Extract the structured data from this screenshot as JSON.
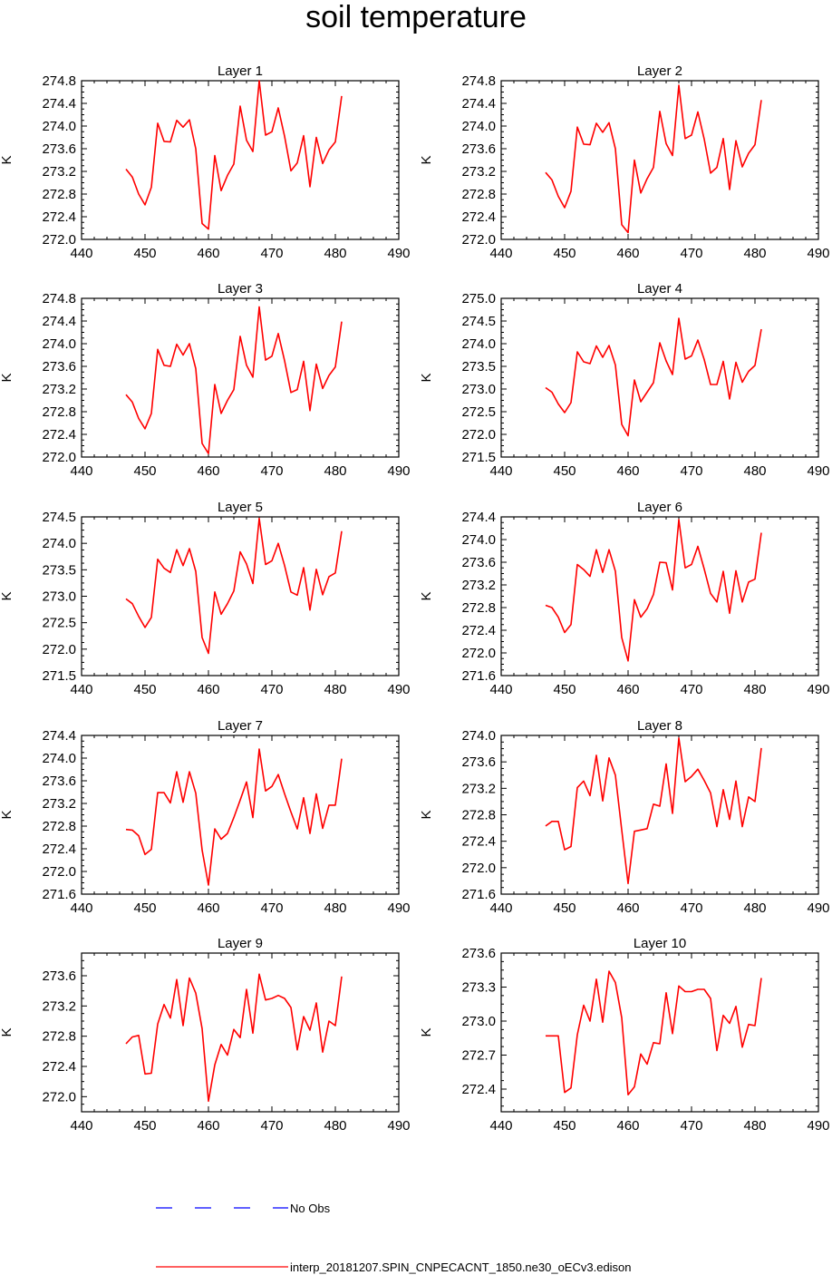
{
  "title": "soil temperature",
  "colors": {
    "model_line": "#ff0000",
    "obs_line": "#0000ff",
    "axis": "#000000"
  },
  "legend": {
    "obs_label": "No Obs",
    "model_label": "interp_20181207.SPIN_CNPECACNT_1850.ne30_oECv3.edison"
  },
  "chart_data": [
    {
      "type": "line",
      "title": "Layer 1",
      "xlabel": "",
      "ylabel": "K",
      "xlim": [
        440,
        490
      ],
      "xticks": [
        440,
        450,
        460,
        470,
        480,
        490
      ],
      "ylim": [
        272.0,
        274.8
      ],
      "yticks": [
        272.0,
        272.4,
        272.8,
        273.2,
        273.6,
        274.0,
        274.4,
        274.8
      ],
      "ytick_labels": [
        "272.0",
        "272.4",
        "272.8",
        "273.2",
        "273.6",
        "274.0",
        "274.4",
        "274.8"
      ],
      "x": [
        447,
        448,
        449,
        450,
        451,
        452,
        453,
        454,
        455,
        456,
        457,
        458,
        459,
        460,
        461,
        462,
        463,
        464,
        465,
        466,
        467,
        468,
        469,
        470,
        471,
        472,
        473,
        474,
        475,
        476,
        477,
        478,
        479,
        480,
        481
      ],
      "series": [
        {
          "name": "interp_20181207.SPIN_CNPECACNT_1850.ne30_oECv3.edison",
          "values": [
            273.24,
            273.1,
            272.8,
            272.61,
            272.92,
            274.05,
            273.73,
            273.72,
            274.1,
            273.98,
            274.11,
            273.6,
            272.28,
            272.18,
            273.48,
            272.86,
            273.13,
            273.33,
            274.35,
            273.75,
            273.55,
            274.8,
            273.84,
            273.9,
            274.32,
            273.82,
            273.21,
            273.35,
            273.83,
            272.93,
            273.8,
            273.34,
            273.58,
            273.72,
            274.53
          ]
        }
      ]
    },
    {
      "type": "line",
      "title": "Layer 2",
      "xlabel": "",
      "ylabel": "K",
      "xlim": [
        440,
        490
      ],
      "xticks": [
        440,
        450,
        460,
        470,
        480,
        490
      ],
      "ylim": [
        272.0,
        274.8
      ],
      "yticks": [
        272.0,
        272.4,
        272.8,
        273.2,
        273.6,
        274.0,
        274.4,
        274.8
      ],
      "ytick_labels": [
        "272.0",
        "272.4",
        "272.8",
        "273.2",
        "273.6",
        "274.0",
        "274.4",
        "274.8"
      ],
      "x": [
        447,
        448,
        449,
        450,
        451,
        452,
        453,
        454,
        455,
        456,
        457,
        458,
        459,
        460,
        461,
        462,
        463,
        464,
        465,
        466,
        467,
        468,
        469,
        470,
        471,
        472,
        473,
        474,
        475,
        476,
        477,
        478,
        479,
        480,
        481
      ],
      "series": [
        {
          "name": "interp_20181207.SPIN_CNPECACNT_1850.ne30_oECv3.edison",
          "values": [
            273.18,
            273.05,
            272.76,
            272.56,
            272.85,
            273.98,
            273.68,
            273.67,
            274.05,
            273.89,
            274.06,
            273.6,
            272.26,
            272.12,
            273.4,
            272.82,
            273.07,
            273.27,
            274.26,
            273.69,
            273.48,
            274.72,
            273.78,
            273.84,
            274.25,
            273.77,
            273.17,
            273.27,
            273.78,
            272.88,
            273.74,
            273.28,
            273.52,
            273.67,
            274.46
          ]
        }
      ]
    },
    {
      "type": "line",
      "title": "Layer 3",
      "xlabel": "",
      "ylabel": "K",
      "xlim": [
        440,
        490
      ],
      "xticks": [
        440,
        450,
        460,
        470,
        480,
        490
      ],
      "ylim": [
        272.0,
        274.8
      ],
      "yticks": [
        272.0,
        272.4,
        272.8,
        273.2,
        273.6,
        274.0,
        274.4,
        274.8
      ],
      "ytick_labels": [
        "272.0",
        "272.4",
        "272.8",
        "273.2",
        "273.6",
        "274.0",
        "274.4",
        "274.8"
      ],
      "x": [
        447,
        448,
        449,
        450,
        451,
        452,
        453,
        454,
        455,
        456,
        457,
        458,
        459,
        460,
        461,
        462,
        463,
        464,
        465,
        466,
        467,
        468,
        469,
        470,
        471,
        472,
        473,
        474,
        475,
        476,
        477,
        478,
        479,
        480,
        481
      ],
      "series": [
        {
          "name": "interp_20181207.SPIN_CNPECACNT_1850.ne30_oECv3.edison",
          "values": [
            273.1,
            272.97,
            272.68,
            272.5,
            272.77,
            273.9,
            273.62,
            273.6,
            273.99,
            273.8,
            274.0,
            273.56,
            272.24,
            272.06,
            273.28,
            272.77,
            273.0,
            273.19,
            274.13,
            273.62,
            273.41,
            274.65,
            273.71,
            273.78,
            274.18,
            273.7,
            273.14,
            273.19,
            273.69,
            272.82,
            273.64,
            273.21,
            273.44,
            273.59,
            274.39
          ]
        }
      ]
    },
    {
      "type": "line",
      "title": "Layer 4",
      "xlabel": "",
      "ylabel": "K",
      "xlim": [
        440,
        490
      ],
      "xticks": [
        440,
        450,
        460,
        470,
        480,
        490
      ],
      "ylim": [
        271.5,
        275.0
      ],
      "yticks": [
        271.5,
        272.0,
        272.5,
        273.0,
        273.5,
        274.0,
        274.5,
        275.0
      ],
      "ytick_labels": [
        "271.5",
        "272.0",
        "272.5",
        "273.0",
        "273.5",
        "274.0",
        "274.5",
        "275.0"
      ],
      "x": [
        447,
        448,
        449,
        450,
        451,
        452,
        453,
        454,
        455,
        456,
        457,
        458,
        459,
        460,
        461,
        462,
        463,
        464,
        465,
        466,
        467,
        468,
        469,
        470,
        471,
        472,
        473,
        474,
        475,
        476,
        477,
        478,
        479,
        480,
        481
      ],
      "series": [
        {
          "name": "interp_20181207.SPIN_CNPECACNT_1850.ne30_oECv3.edison",
          "values": [
            273.03,
            272.93,
            272.67,
            272.48,
            272.7,
            273.82,
            273.6,
            273.56,
            273.95,
            273.7,
            273.96,
            273.53,
            272.22,
            271.97,
            273.2,
            272.72,
            272.93,
            273.14,
            274.02,
            273.62,
            273.32,
            274.56,
            273.66,
            273.73,
            274.08,
            273.65,
            273.1,
            273.1,
            273.61,
            272.78,
            273.59,
            273.15,
            273.39,
            273.52,
            274.32
          ]
        }
      ]
    },
    {
      "type": "line",
      "title": "Layer 5",
      "xlabel": "",
      "ylabel": "K",
      "xlim": [
        440,
        490
      ],
      "xticks": [
        440,
        450,
        460,
        470,
        480,
        490
      ],
      "ylim": [
        271.5,
        274.5
      ],
      "yticks": [
        271.5,
        272.0,
        272.5,
        273.0,
        273.5,
        274.0,
        274.5
      ],
      "ytick_labels": [
        "271.5",
        "272.0",
        "272.5",
        "273.0",
        "273.5",
        "274.0",
        "274.5"
      ],
      "x": [
        447,
        448,
        449,
        450,
        451,
        452,
        453,
        454,
        455,
        456,
        457,
        458,
        459,
        460,
        461,
        462,
        463,
        464,
        465,
        466,
        467,
        468,
        469,
        470,
        471,
        472,
        473,
        474,
        475,
        476,
        477,
        478,
        479,
        480,
        481
      ],
      "series": [
        {
          "name": "interp_20181207.SPIN_CNPECACNT_1850.ne30_oECv3.edison",
          "values": [
            272.95,
            272.86,
            272.62,
            272.41,
            272.6,
            273.7,
            273.53,
            273.45,
            273.88,
            273.58,
            273.9,
            273.47,
            272.22,
            271.92,
            273.08,
            272.66,
            272.86,
            273.1,
            273.84,
            273.61,
            273.24,
            274.47,
            273.6,
            273.67,
            274.0,
            273.58,
            273.08,
            273.02,
            273.54,
            272.74,
            273.51,
            273.03,
            273.37,
            273.44,
            274.23
          ]
        }
      ]
    },
    {
      "type": "line",
      "title": "Layer 6",
      "xlabel": "",
      "ylabel": "K",
      "xlim": [
        440,
        490
      ],
      "xticks": [
        440,
        450,
        460,
        470,
        480,
        490
      ],
      "ylim": [
        271.6,
        274.4
      ],
      "yticks": [
        271.6,
        272.0,
        272.4,
        272.8,
        273.2,
        273.6,
        274.0,
        274.4
      ],
      "ytick_labels": [
        "271.6",
        "272.0",
        "272.4",
        "272.8",
        "273.2",
        "273.6",
        "274.0",
        "274.4"
      ],
      "x": [
        447,
        448,
        449,
        450,
        451,
        452,
        453,
        454,
        455,
        456,
        457,
        458,
        459,
        460,
        461,
        462,
        463,
        464,
        465,
        466,
        467,
        468,
        469,
        470,
        471,
        472,
        473,
        474,
        475,
        476,
        477,
        478,
        479,
        480,
        481
      ],
      "series": [
        {
          "name": "interp_20181207.SPIN_CNPECACNT_1850.ne30_oECv3.edison",
          "values": [
            272.84,
            272.8,
            272.63,
            272.36,
            272.5,
            273.56,
            273.47,
            273.35,
            273.82,
            273.42,
            273.82,
            273.44,
            272.27,
            271.86,
            272.94,
            272.63,
            272.78,
            273.03,
            273.6,
            273.59,
            273.11,
            274.35,
            273.5,
            273.56,
            273.88,
            273.48,
            273.05,
            272.9,
            273.44,
            272.7,
            273.45,
            272.9,
            273.25,
            273.3,
            274.12
          ]
        }
      ]
    },
    {
      "type": "line",
      "title": "Layer 7",
      "xlabel": "",
      "ylabel": "K",
      "xlim": [
        440,
        490
      ],
      "xticks": [
        440,
        450,
        460,
        470,
        480,
        490
      ],
      "ylim": [
        271.6,
        274.4
      ],
      "yticks": [
        271.6,
        272.0,
        272.4,
        272.8,
        273.2,
        273.6,
        274.0,
        274.4
      ],
      "ytick_labels": [
        "271.6",
        "272.0",
        "272.4",
        "272.8",
        "273.2",
        "273.6",
        "274.0",
        "274.4"
      ],
      "x": [
        447,
        448,
        449,
        450,
        451,
        452,
        453,
        454,
        455,
        456,
        457,
        458,
        459,
        460,
        461,
        462,
        463,
        464,
        465,
        466,
        467,
        468,
        469,
        470,
        471,
        472,
        473,
        474,
        475,
        476,
        477,
        478,
        479,
        480,
        481
      ],
      "series": [
        {
          "name": "interp_20181207.SPIN_CNPECACNT_1850.ne30_oECv3.edison",
          "values": [
            272.74,
            272.73,
            272.63,
            272.3,
            272.39,
            273.39,
            273.39,
            273.21,
            273.76,
            273.22,
            273.76,
            273.38,
            272.38,
            271.76,
            272.75,
            272.57,
            272.67,
            272.95,
            273.26,
            273.58,
            272.95,
            274.16,
            273.42,
            273.5,
            273.71,
            273.37,
            273.05,
            272.75,
            273.3,
            272.67,
            273.37,
            272.76,
            273.17,
            273.17,
            273.99
          ]
        }
      ]
    },
    {
      "type": "line",
      "title": "Layer 8",
      "xlabel": "",
      "ylabel": "K",
      "xlim": [
        440,
        490
      ],
      "xticks": [
        440,
        450,
        460,
        470,
        480,
        490
      ],
      "ylim": [
        271.6,
        274.0
      ],
      "yticks": [
        271.6,
        272.0,
        272.4,
        272.8,
        273.2,
        273.6,
        274.0
      ],
      "ytick_labels": [
        "271.6",
        "272.0",
        "272.4",
        "272.8",
        "273.2",
        "273.6",
        "274.0"
      ],
      "x": [
        447,
        448,
        449,
        450,
        451,
        452,
        453,
        454,
        455,
        456,
        457,
        458,
        459,
        460,
        461,
        462,
        463,
        464,
        465,
        466,
        467,
        468,
        469,
        470,
        471,
        472,
        473,
        474,
        475,
        476,
        477,
        478,
        479,
        480,
        481
      ],
      "series": [
        {
          "name": "interp_20181207.SPIN_CNPECACNT_1850.ne30_oECv3.edison",
          "values": [
            272.63,
            272.7,
            272.7,
            272.27,
            272.32,
            273.21,
            273.31,
            273.09,
            273.7,
            273.01,
            273.66,
            273.4,
            272.57,
            271.76,
            272.55,
            272.57,
            272.59,
            272.96,
            272.93,
            273.57,
            272.82,
            273.96,
            273.3,
            273.38,
            273.49,
            273.32,
            273.13,
            272.62,
            273.18,
            272.73,
            273.31,
            272.62,
            273.07,
            273.0,
            273.81
          ]
        }
      ]
    },
    {
      "type": "line",
      "title": "Layer 9",
      "xlabel": "",
      "ylabel": "K",
      "xlim": [
        440,
        490
      ],
      "xticks": [
        440,
        450,
        460,
        470,
        480,
        490
      ],
      "ylim": [
        271.8,
        273.9
      ],
      "yticks": [
        272.0,
        272.4,
        272.8,
        273.2,
        273.6
      ],
      "ytick_labels": [
        "272.0",
        "272.4",
        "272.8",
        "273.2",
        "273.6"
      ],
      "x": [
        447,
        448,
        449,
        450,
        451,
        452,
        453,
        454,
        455,
        456,
        457,
        458,
        459,
        460,
        461,
        462,
        463,
        464,
        465,
        466,
        467,
        468,
        469,
        470,
        471,
        472,
        473,
        474,
        475,
        476,
        477,
        478,
        479,
        480,
        481
      ],
      "series": [
        {
          "name": "interp_20181207.SPIN_CNPECACNT_1850.ne30_oECv3.edison",
          "values": [
            272.7,
            272.79,
            272.81,
            272.3,
            272.31,
            272.96,
            273.22,
            273.04,
            273.55,
            272.94,
            273.57,
            273.37,
            272.9,
            271.94,
            272.42,
            272.69,
            272.55,
            272.89,
            272.78,
            273.42,
            272.84,
            273.62,
            273.28,
            273.3,
            273.34,
            273.3,
            273.18,
            272.62,
            273.06,
            272.88,
            273.24,
            272.59,
            273.0,
            272.94,
            273.59
          ]
        }
      ]
    },
    {
      "type": "line",
      "title": "Layer 10",
      "xlabel": "",
      "ylabel": "K",
      "xlim": [
        440,
        490
      ],
      "xticks": [
        440,
        450,
        460,
        470,
        480,
        490
      ],
      "ylim": [
        272.2,
        273.6
      ],
      "yticks": [
        272.4,
        272.7,
        273.0,
        273.3,
        273.6
      ],
      "ytick_labels": [
        "272.4",
        "272.7",
        "273.0",
        "273.3",
        "273.6"
      ],
      "x": [
        447,
        448,
        449,
        450,
        451,
        452,
        453,
        454,
        455,
        456,
        457,
        458,
        459,
        460,
        461,
        462,
        463,
        464,
        465,
        466,
        467,
        468,
        469,
        470,
        471,
        472,
        473,
        474,
        475,
        476,
        477,
        478,
        479,
        480,
        481
      ],
      "series": [
        {
          "name": "interp_20181207.SPIN_CNPECACNT_1850.ne30_oECv3.edison",
          "values": [
            272.87,
            272.87,
            272.87,
            272.37,
            272.41,
            272.88,
            273.14,
            273.0,
            273.37,
            272.99,
            273.44,
            273.34,
            273.03,
            272.35,
            272.42,
            272.71,
            272.62,
            272.81,
            272.8,
            273.25,
            272.89,
            273.31,
            273.26,
            273.26,
            273.28,
            273.28,
            273.2,
            272.74,
            273.05,
            272.98,
            273.13,
            272.77,
            272.97,
            272.96,
            273.38
          ]
        }
      ]
    }
  ]
}
